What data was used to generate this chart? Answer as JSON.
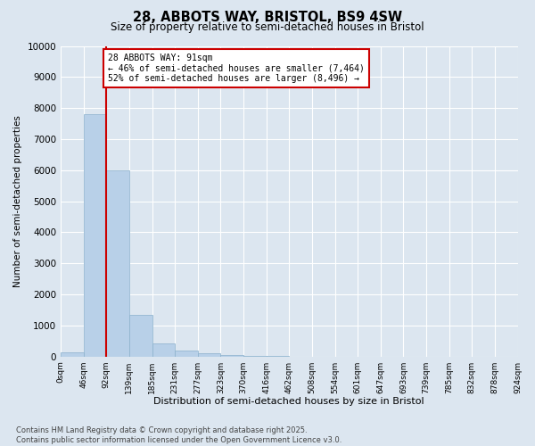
{
  "title": "28, ABBOTS WAY, BRISTOL, BS9 4SW",
  "subtitle": "Size of property relative to semi-detached houses in Bristol",
  "xlabel": "Distribution of semi-detached houses by size in Bristol",
  "ylabel": "Number of semi-detached properties",
  "bin_labels": [
    "0sqm",
    "46sqm",
    "92sqm",
    "139sqm",
    "185sqm",
    "231sqm",
    "277sqm",
    "323sqm",
    "370sqm",
    "416sqm",
    "462sqm",
    "508sqm",
    "554sqm",
    "601sqm",
    "647sqm",
    "693sqm",
    "739sqm",
    "785sqm",
    "832sqm",
    "878sqm",
    "924sqm"
  ],
  "bar_heights": [
    130,
    7800,
    6000,
    1350,
    430,
    195,
    95,
    45,
    10,
    5,
    2,
    1,
    0,
    0,
    0,
    0,
    0,
    0,
    0,
    0
  ],
  "bar_color": "#b8d0e8",
  "bar_edge_color": "#8ab0cc",
  "background_color": "#dce6f0",
  "grid_color": "#ffffff",
  "property_line_x": 1.978,
  "property_line_color": "#cc0000",
  "annotation_text": "28 ABBOTS WAY: 91sqm\n← 46% of semi-detached houses are smaller (7,464)\n52% of semi-detached houses are larger (8,496) →",
  "annotation_box_color": "#ffffff",
  "annotation_box_edge_color": "#cc0000",
  "footer_text": "Contains HM Land Registry data © Crown copyright and database right 2025.\nContains public sector information licensed under the Open Government Licence v3.0.",
  "ylim": [
    0,
    10000
  ],
  "yticks": [
    0,
    1000,
    2000,
    3000,
    4000,
    5000,
    6000,
    7000,
    8000,
    9000,
    10000
  ]
}
